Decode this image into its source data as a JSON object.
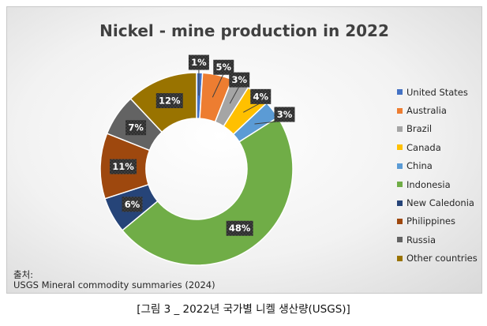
{
  "chart_data": {
    "type": "pie",
    "title": "Nickel - mine production in 2022",
    "categories": [
      "United States",
      "Australia",
      "Brazil",
      "Canada",
      "China",
      "Indonesia",
      "New Caledonia",
      "Philippines",
      "Russia",
      "Other countries"
    ],
    "values": [
      1,
      5,
      3,
      4,
      3,
      48,
      6,
      11,
      7,
      12
    ],
    "labels": [
      "1%",
      "5%",
      "3%",
      "4%",
      "3%",
      "48%",
      "6%",
      "11%",
      "7%",
      "12%"
    ],
    "colors": [
      "#4472c4",
      "#ed7d31",
      "#a5a5a5",
      "#ffc000",
      "#5b9bd5",
      "#70ad47",
      "#264478",
      "#9e480e",
      "#636363",
      "#997300"
    ],
    "legend_position": "right"
  },
  "source": {
    "label": "출처:",
    "text": "USGS Mineral commodity summaries (2024)"
  },
  "caption": "[그림 3 _ 2022년 국가별 니켈 생산량(USGS)]"
}
